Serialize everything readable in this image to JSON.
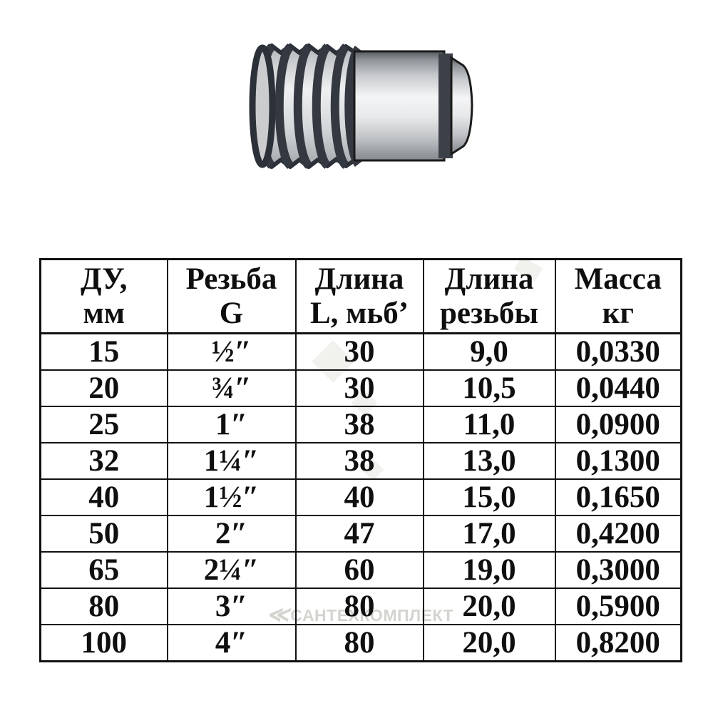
{
  "figure": {
    "name": "threaded-pipe-nipple-drawing"
  },
  "watermark": {
    "logo": "≪",
    "text": "САНТЕХКОМПЛЕКТ"
  },
  "table": {
    "headers": [
      {
        "line1": "ДУ,",
        "line2": "мм"
      },
      {
        "line1": "Резьба",
        "line2": "G"
      },
      {
        "line1": "Длина",
        "line2": "L, мьбʼ"
      },
      {
        "line1": "Длина",
        "line2": "резьбы"
      },
      {
        "line1": "Масса",
        "line2": "кг"
      }
    ],
    "rows": [
      [
        "15",
        "½″",
        "30",
        "9,0",
        "0,0330"
      ],
      [
        "20",
        "¾″",
        "30",
        "10,5",
        "0,0440"
      ],
      [
        "25",
        "1″",
        "38",
        "11,0",
        "0,0900"
      ],
      [
        "32",
        "1¼″",
        "38",
        "13,0",
        "0,1300"
      ],
      [
        "40",
        "1½″",
        "40",
        "15,0",
        "0,1650"
      ],
      [
        "50",
        "2″",
        "47",
        "17,0",
        "0,4200"
      ],
      [
        "65",
        "2¼″",
        "60",
        "19,0",
        "0,3000"
      ],
      [
        "80",
        "3″",
        "80",
        "20,0",
        "0,5900"
      ],
      [
        "100",
        "4″",
        "80",
        "20,0",
        "0,8200"
      ]
    ]
  }
}
